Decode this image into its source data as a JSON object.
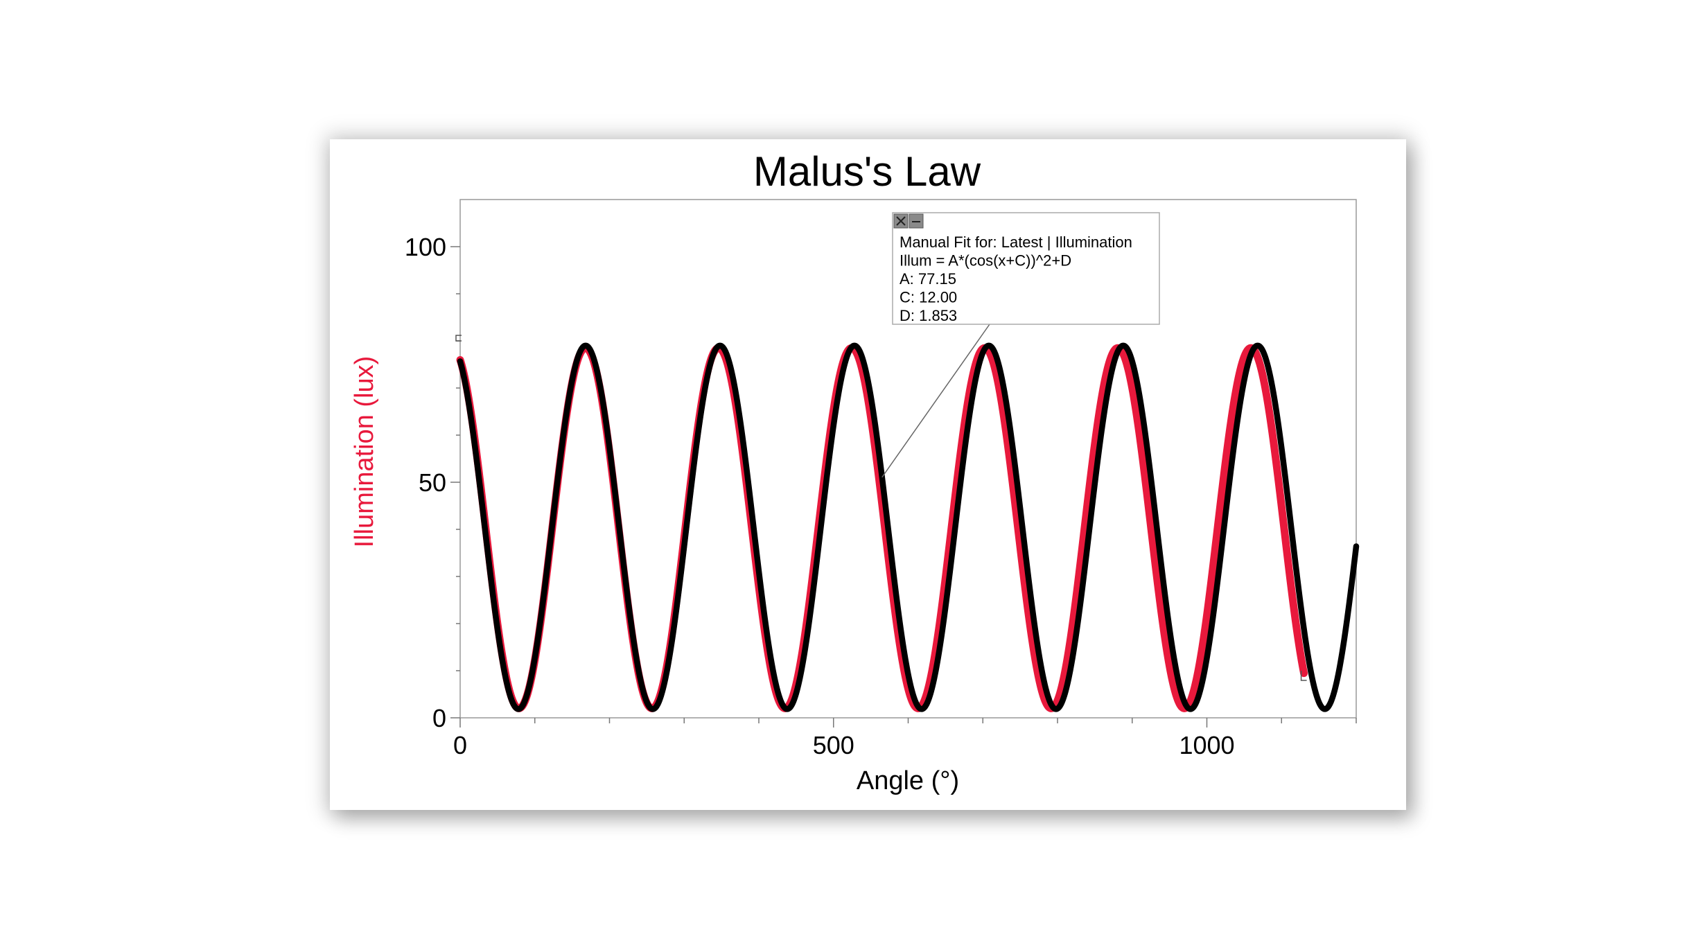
{
  "chart_data": {
    "type": "line",
    "title": "Malus's Law",
    "xlabel": "Angle (°)",
    "ylabel": "Illumination (lux)",
    "xlim": [
      0,
      1200
    ],
    "ylim": [
      0,
      110
    ],
    "x_ticks": [
      0,
      500,
      1000
    ],
    "y_ticks": [
      0,
      50,
      100
    ],
    "grid": false,
    "series": [
      {
        "role": "measured",
        "color": "#e8193c",
        "x_range": [
          0,
          1130
        ],
        "model": {
          "A": 76.5,
          "C": 10.5,
          "D": 2.0,
          "x_scale": 1.01
        }
      },
      {
        "role": "fit",
        "color": "#000000",
        "x_range": [
          0,
          1200
        ],
        "model": {
          "A": 77.15,
          "C": 12.0,
          "D": 1.853
        }
      }
    ],
    "annotation": {
      "lines": [
        "Manual Fit for: Latest | Illumination",
        "Illum = A*(cos(x+C))^2+D",
        "A: 77.15",
        "C: 12.00",
        "D: 1.853"
      ],
      "points_to_x": 565
    }
  },
  "colors": {
    "measured": "#e8193c",
    "fit": "#000000",
    "axis": "#555555"
  },
  "icons": {
    "close": "close-icon",
    "minimize": "minimize-icon"
  }
}
